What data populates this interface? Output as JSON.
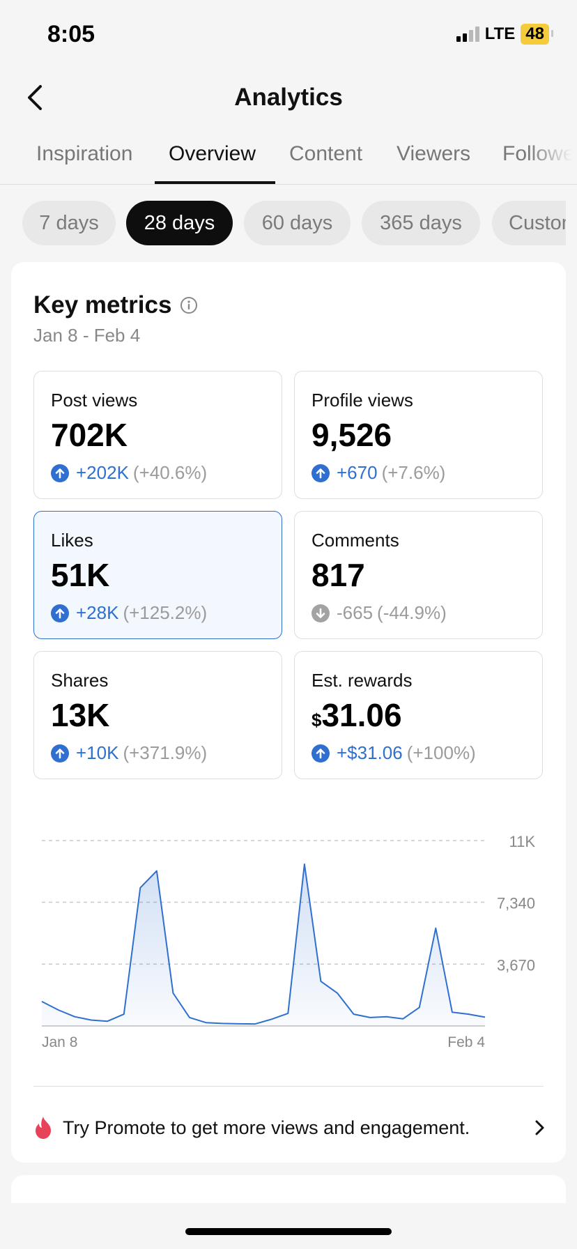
{
  "status_bar": {
    "time": "8:05",
    "network": "LTE",
    "battery": "48"
  },
  "header": {
    "title": "Analytics",
    "back_icon": "chevron-left-icon"
  },
  "tabs": [
    {
      "label": "Inspiration",
      "active": false
    },
    {
      "label": "Overview",
      "active": true
    },
    {
      "label": "Content",
      "active": false
    },
    {
      "label": "Viewers",
      "active": false
    },
    {
      "label": "Followers",
      "active": false
    }
  ],
  "periods": [
    {
      "label": "7 days",
      "active": false
    },
    {
      "label": "28 days",
      "active": true
    },
    {
      "label": "60 days",
      "active": false
    },
    {
      "label": "365 days",
      "active": false
    },
    {
      "label": "Custom",
      "active": false
    }
  ],
  "key_metrics": {
    "title": "Key metrics",
    "info_icon": "info-circle-icon",
    "date_range": "Jan 8 - Feb 4",
    "metrics": [
      {
        "label": "Post views",
        "value": "702K",
        "delta": "+202K",
        "delta_pct": "(+40.6%)",
        "trend": "up"
      },
      {
        "label": "Profile views",
        "value": "9,526",
        "delta": "+670",
        "delta_pct": "(+7.6%)",
        "trend": "up"
      },
      {
        "label": "Likes",
        "value": "51K",
        "delta": "+28K",
        "delta_pct": "(+125.2%)",
        "trend": "up",
        "selected": true
      },
      {
        "label": "Comments",
        "value": "817",
        "delta": "-665",
        "delta_pct": "(-44.9%)",
        "trend": "down"
      },
      {
        "label": "Shares",
        "value": "13K",
        "delta": "+10K",
        "delta_pct": "(+371.9%)",
        "trend": "up"
      },
      {
        "label": "Est. rewards",
        "currency": "$",
        "value": "31.06",
        "delta": "+$31.06",
        "delta_pct": "(+100%)",
        "trend": "up"
      }
    ]
  },
  "colors": {
    "accent": "#2f6fcf",
    "muted": "#9b9b9b",
    "chip_active": "#0e0e0e",
    "flame": "#e8425b"
  },
  "chart_data": {
    "type": "area",
    "x_start_label": "Jan 8",
    "x_end_label": "Feb 4",
    "ytick_labels": [
      "11K",
      "7,340",
      "3,670"
    ],
    "yticks": [
      11000,
      7340,
      3670
    ],
    "ylim": [
      0,
      11000
    ],
    "grid": true,
    "values": [
      1450,
      950,
      550,
      350,
      280,
      700,
      8200,
      9200,
      1950,
      500,
      200,
      150,
      130,
      120,
      400,
      750,
      9600,
      2650,
      1950,
      700,
      500,
      550,
      420,
      1100,
      5800,
      820,
      700,
      520
    ]
  },
  "promo": {
    "icon": "flame-icon",
    "text": "Try Promote to get more views and engagement.",
    "chevron": "chevron-right-icon"
  }
}
